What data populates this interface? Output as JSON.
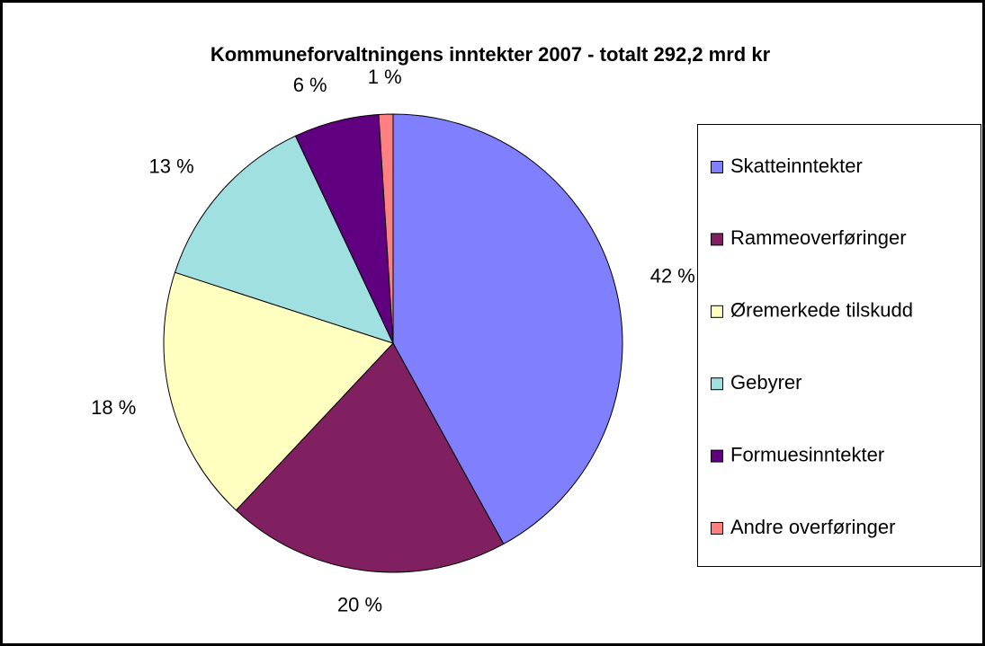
{
  "chart_data": {
    "type": "pie",
    "title": "Kommuneforvaltningens inntekter 2007 - totalt 292,2 mrd kr",
    "categories": [
      "Skatteinntekter",
      "Rammeoverføringer",
      "Øremerkede tilskudd",
      "Gebyrer",
      "Formuesinntekter",
      "Andre overføringer"
    ],
    "values": [
      42,
      20,
      18,
      13,
      6,
      1
    ],
    "value_labels": [
      "42 %",
      "20 %",
      "18 %",
      "13 %",
      "6 %",
      "1 %"
    ],
    "colors": [
      "#8080ff",
      "#802060",
      "#ffffc0",
      "#a0e0e0",
      "#600080",
      "#ff8080"
    ],
    "legend": "right"
  }
}
